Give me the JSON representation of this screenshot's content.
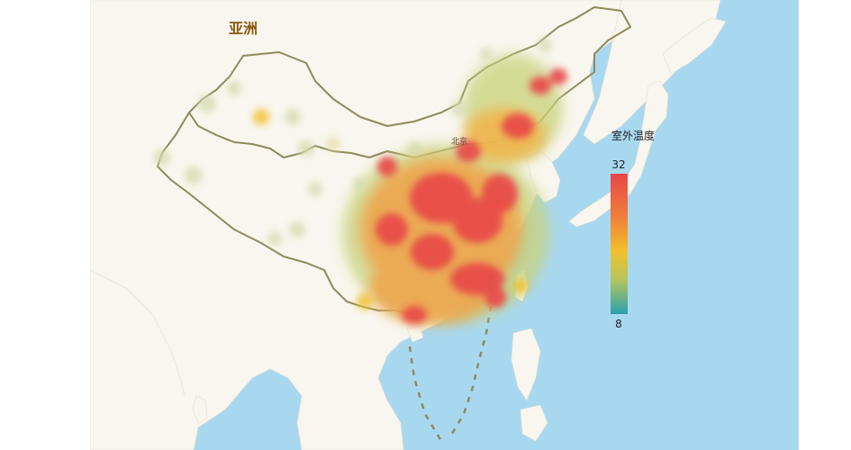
{
  "map": {
    "region_label": "亚洲",
    "city_label": "北京"
  },
  "legend": {
    "title": "室外温度",
    "max": "32",
    "min": "8",
    "colors": [
      "#e84646",
      "#f07c3c",
      "#f2c02c",
      "#b7c65b",
      "#2ba0ae"
    ]
  },
  "colors": {
    "sea": "#a8d8ef",
    "land": "#f8f6ee",
    "border": "#8f8a5c"
  }
}
